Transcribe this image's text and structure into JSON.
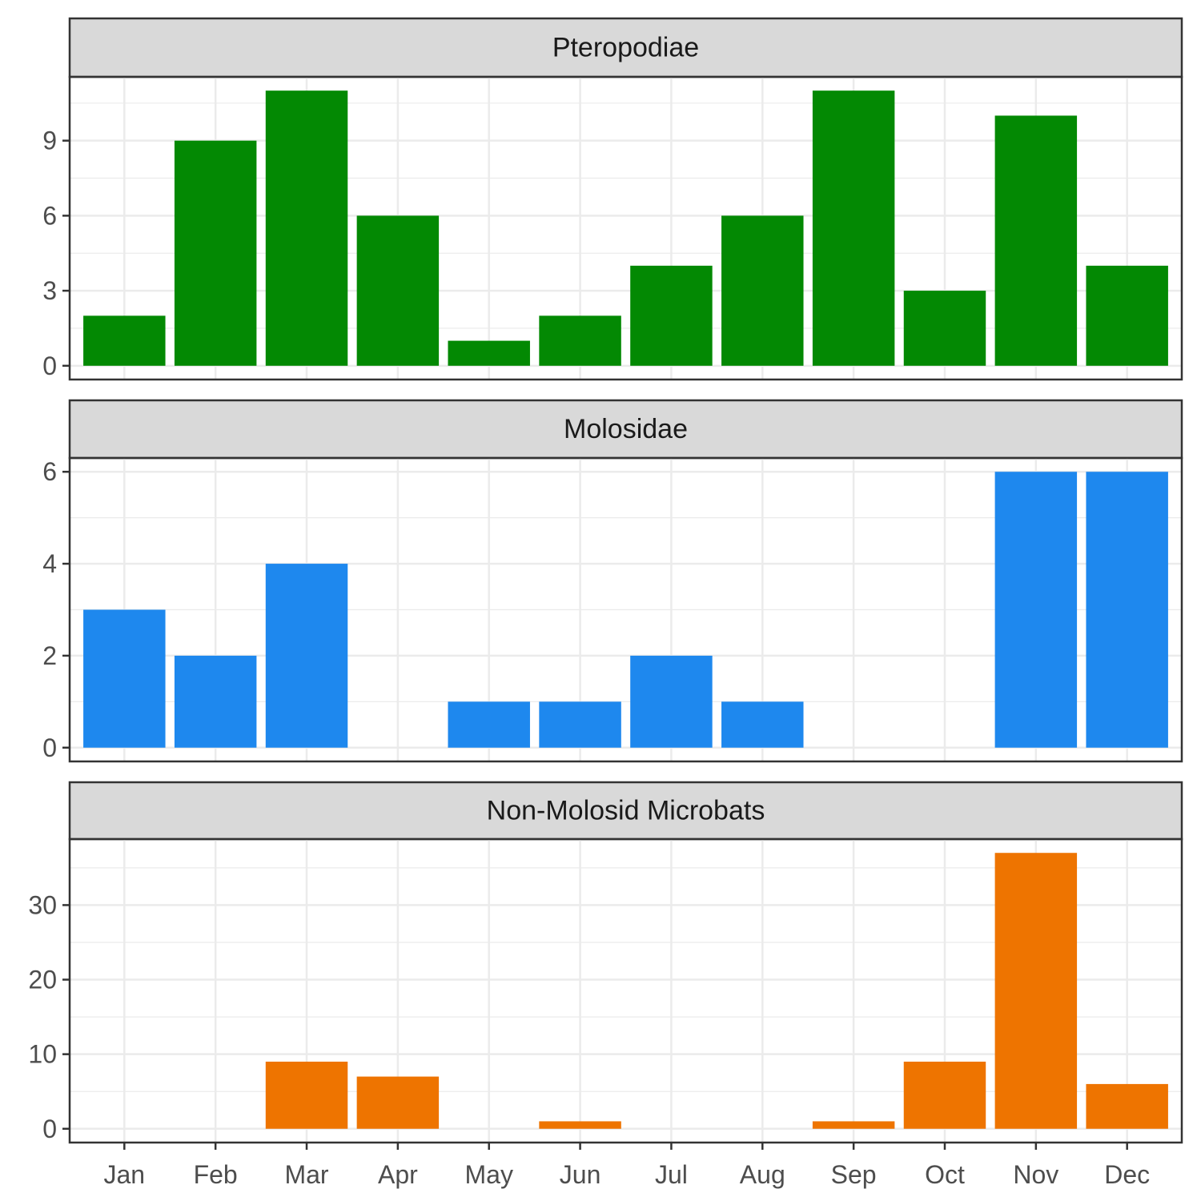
{
  "chart_data": {
    "type": "bar",
    "layout": "faceted-vertical",
    "categories": [
      "Jan",
      "Feb",
      "Mar",
      "Apr",
      "May",
      "Jun",
      "Jul",
      "Aug",
      "Sep",
      "Oct",
      "Nov",
      "Dec"
    ],
    "xlabel": "",
    "ylabel": "",
    "grid": true,
    "legend": "none",
    "panels": [
      {
        "name": "Pteropodiae",
        "color": "#038903",
        "values": [
          2,
          9,
          11,
          6,
          1,
          2,
          4,
          6,
          11,
          3,
          10,
          4
        ],
        "ylim": [
          -0.55,
          11.55
        ],
        "yticks": [
          0,
          3,
          6,
          9
        ]
      },
      {
        "name": "Molosidae",
        "color": "#1E88EE",
        "values": [
          3,
          2,
          4,
          0,
          1,
          1,
          2,
          1,
          0,
          0,
          6,
          6
        ],
        "ylim": [
          -0.3,
          6.3
        ],
        "yticks": [
          0,
          2,
          4,
          6
        ]
      },
      {
        "name": "Non-Molosid Microbats",
        "color": "#EE7400",
        "values": [
          0,
          0,
          9,
          7,
          0,
          1,
          0,
          0,
          1,
          9,
          37,
          6
        ],
        "ylim": [
          -1.85,
          38.85
        ],
        "yticks": [
          0,
          10,
          20,
          30
        ]
      }
    ]
  }
}
